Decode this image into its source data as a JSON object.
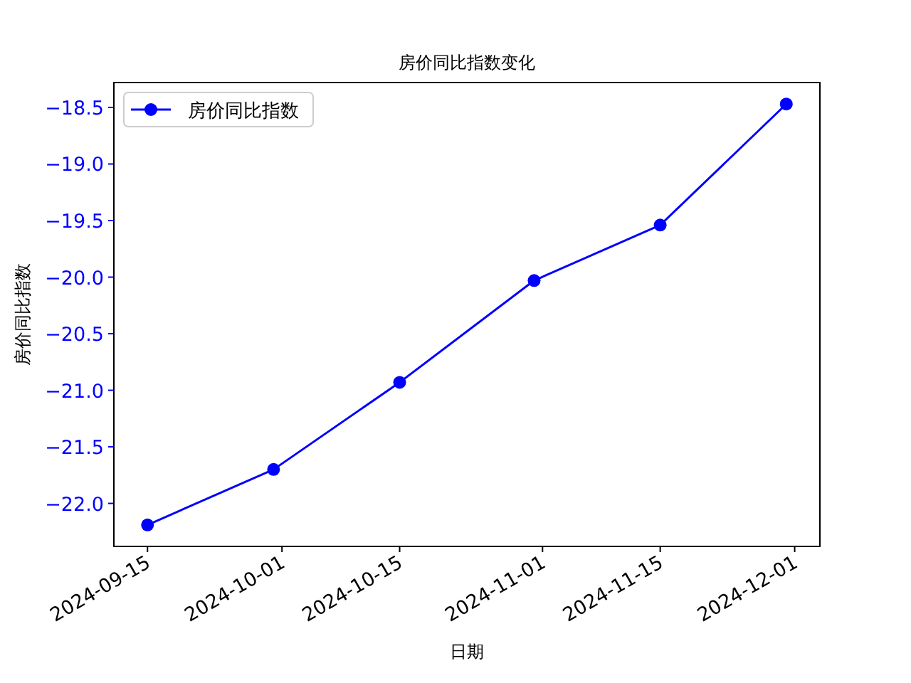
{
  "chart_data": {
    "type": "line",
    "title": "房价同比指数变化",
    "xlabel": "日期",
    "ylabel": "房价同比指数",
    "x": [
      "2024-09-15",
      "2024-09-30",
      "2024-10-15",
      "2024-10-31",
      "2024-11-15",
      "2024-11-30"
    ],
    "series": [
      {
        "name": "房价同比指数",
        "color": "#0000ff",
        "values": [
          -22.19,
          -21.7,
          -20.93,
          -20.03,
          -19.54,
          -18.47
        ]
      }
    ],
    "xlim": [
      "2024-09-11",
      "2024-12-04"
    ],
    "xticks": [
      "2024-09-15",
      "2024-10-01",
      "2024-10-15",
      "2024-11-01",
      "2024-11-15",
      "2024-12-01"
    ],
    "ylim": [
      -22.38,
      -18.28
    ],
    "yticks": [
      {
        "value": -22,
        "label": "−22.0"
      },
      {
        "value": -21.5,
        "label": "−21.5"
      },
      {
        "value": -21,
        "label": "−21.0"
      },
      {
        "value": -20.5,
        "label": "−20.5"
      },
      {
        "value": -20,
        "label": "−20.0"
      },
      {
        "value": -19.5,
        "label": "−19.5"
      },
      {
        "value": -19,
        "label": "−19.0"
      },
      {
        "value": -18.5,
        "label": "−18.5"
      }
    ],
    "legend": "top left",
    "marker": "circle",
    "line_style": "solid",
    "grid": false
  }
}
